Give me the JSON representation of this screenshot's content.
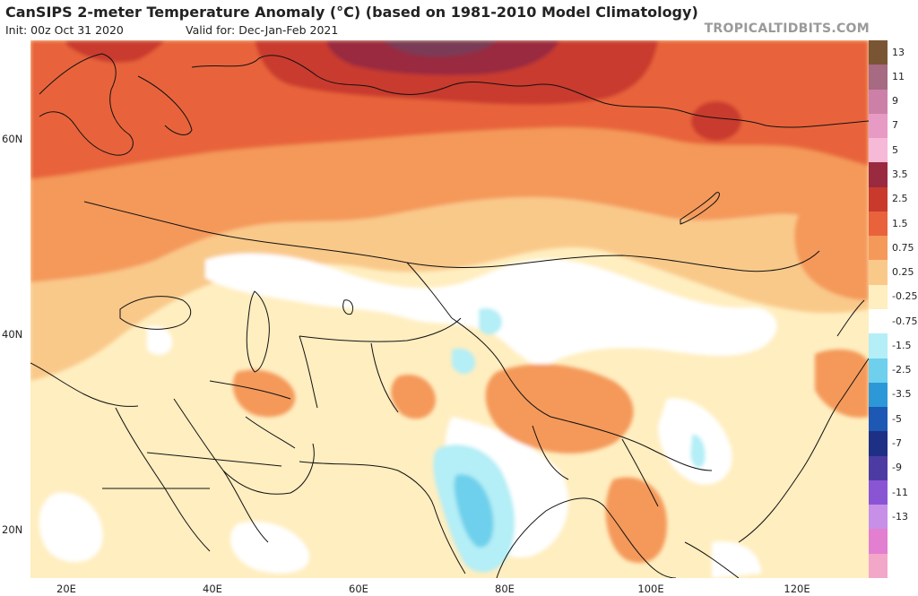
{
  "header": {
    "title": "CanSIPS 2-meter Temperature Anomaly (°C) (based on 1981-2010 Model Climatology)",
    "init": "Init: 00z Oct 31 2020",
    "valid": "Valid for: Dec-Jan-Feb 2021",
    "brand": "TROPICALTIDBITS.COM"
  },
  "map": {
    "lon_range": [
      15,
      130
    ],
    "lat_range": [
      15,
      70
    ],
    "lat_labels": [
      "60N",
      "40N",
      "20N"
    ],
    "lat_values": [
      60,
      40,
      20
    ],
    "lon_labels": [
      "20E",
      "40E",
      "60E",
      "80E",
      "100E",
      "120E"
    ],
    "lon_values": [
      20,
      40,
      60,
      80,
      100,
      120
    ]
  },
  "legend": {
    "bins": [
      {
        "label": "13",
        "color": "#7a5533"
      },
      {
        "label": "11",
        "color": "#a66a83"
      },
      {
        "label": "9",
        "color": "#cc80a8"
      },
      {
        "label": "7",
        "color": "#e79ac4"
      },
      {
        "label": "5",
        "color": "#f6b9d7"
      },
      {
        "label": "3.5",
        "color": "#992a3f"
      },
      {
        "label": "2.5",
        "color": "#c93a2d"
      },
      {
        "label": "1.5",
        "color": "#e8633b"
      },
      {
        "label": "0.75",
        "color": "#f4995a"
      },
      {
        "label": "0.25",
        "color": "#f9c98a"
      },
      {
        "label": "-0.25",
        "color": "#ffeec0"
      },
      {
        "label": "-0.75",
        "color": "#ffffff"
      },
      {
        "label": "-1.5",
        "color": "#b4eef6"
      },
      {
        "label": "-2.5",
        "color": "#6ed0ec"
      },
      {
        "label": "-3.5",
        "color": "#2d98d8"
      },
      {
        "label": "-5",
        "color": "#1c58b4"
      },
      {
        "label": "-7",
        "color": "#1e2f86"
      },
      {
        "label": "-9",
        "color": "#4d3ba4"
      },
      {
        "label": "-11",
        "color": "#8a55d4"
      },
      {
        "label": "-13",
        "color": "#c78fe8"
      },
      {
        "label": "",
        "color": "#e27fd0"
      },
      {
        "label": "",
        "color": "#f2a7c9"
      }
    ]
  }
}
